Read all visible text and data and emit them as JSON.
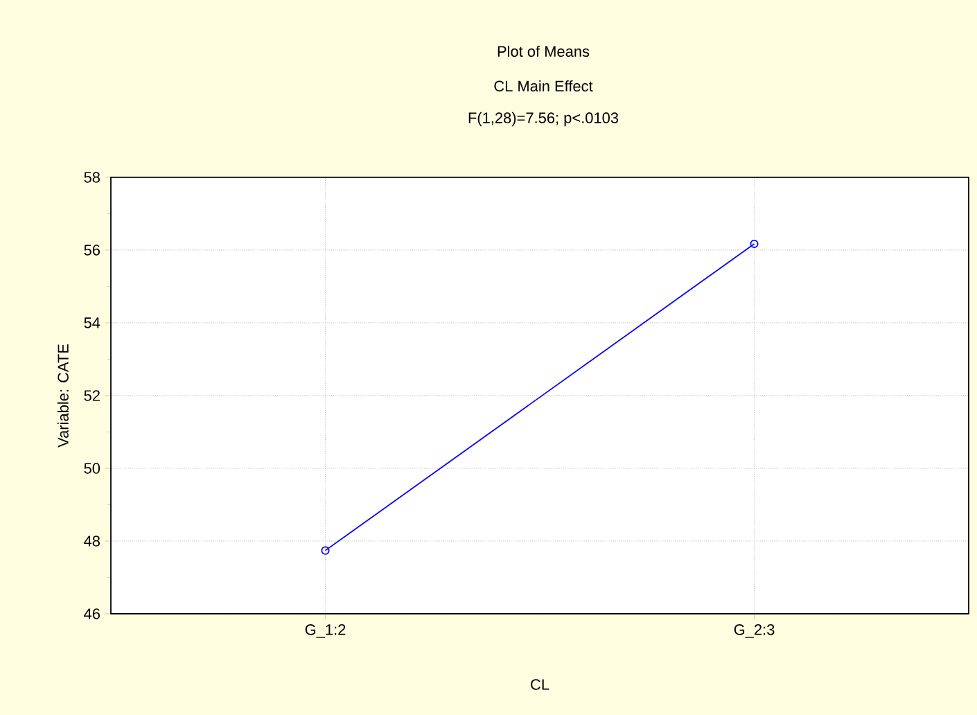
{
  "chart_data": {
    "type": "line",
    "title": "Plot of Means",
    "subtitle": "CL Main Effect",
    "annotations": [
      "F(1,28)=7.56; p<.0103"
    ],
    "xlabel": "CL",
    "ylabel": "Variable: CATE",
    "categories": [
      "G_1:2",
      "G_2:3"
    ],
    "series": [
      {
        "color": "#0000ff",
        "values": [
          47.74,
          56.17
        ]
      }
    ],
    "ylim": [
      46,
      58
    ],
    "yticks": [
      46,
      48,
      50,
      52,
      54,
      56,
      58
    ],
    "grid": true,
    "marker": "circle",
    "line_style": "solid"
  }
}
